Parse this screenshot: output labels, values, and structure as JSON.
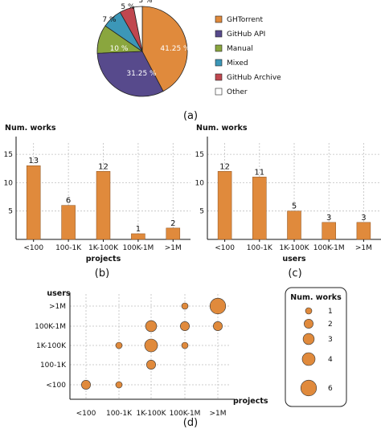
{
  "chart_data": [
    {
      "id": "a",
      "type": "pie",
      "caption": "(a)",
      "labels": [
        "GHTorrent",
        "GitHub API",
        "Manual",
        "Mixed",
        "GitHub Archive",
        "Other"
      ],
      "values": [
        41.25,
        31.25,
        10,
        7,
        5,
        3
      ],
      "value_labels": [
        "41.25 %",
        "31.25 %",
        "10 %",
        "7 %",
        "5 %",
        "3 %"
      ],
      "colors": [
        "#e08a3c",
        "#574a8c",
        "#8aa63e",
        "#3c97b8",
        "#c0474f",
        "#ffffff"
      ],
      "legend_placement": "right"
    },
    {
      "id": "b",
      "type": "bar",
      "caption": "(b)",
      "categories": [
        "<100",
        "100-1K",
        "1K-100K",
        "100K-1M",
        ">1M"
      ],
      "values": [
        13,
        6,
        12,
        1,
        2
      ],
      "xlabel": "projects",
      "ylabel": "Num. works",
      "ylim": [
        0,
        17
      ],
      "yticks": [
        5,
        10,
        15
      ],
      "grid": true,
      "color": "#e08a3c"
    },
    {
      "id": "c",
      "type": "bar",
      "caption": "(c)",
      "categories": [
        "<100",
        "100-1K",
        "1K-100K",
        "100K-1M",
        ">1M"
      ],
      "values": [
        12,
        11,
        5,
        3,
        3
      ],
      "xlabel": "users",
      "ylabel": "Num. works",
      "ylim": [
        0,
        17
      ],
      "yticks": [
        5,
        10,
        15
      ],
      "grid": true,
      "color": "#e08a3c"
    },
    {
      "id": "d",
      "type": "scatter",
      "caption": "(d)",
      "x_categories": [
        "<100",
        "100-1K",
        "1K-100K",
        "100K-1M",
        ">1M"
      ],
      "y_categories": [
        "<100",
        "100-1K",
        "1K-100K",
        "100K-1M",
        ">1M"
      ],
      "xlabel": "projects",
      "ylabel": "users",
      "size_legend_title": "Num. works",
      "size_legend_values": [
        1,
        2,
        3,
        4,
        6
      ],
      "points": [
        {
          "x": "<100",
          "y": "<100",
          "works": 2
        },
        {
          "x": "100-1K",
          "y": "<100",
          "works": 1
        },
        {
          "x": "100-1K",
          "y": "1K-100K",
          "works": 1
        },
        {
          "x": "1K-100K",
          "y": "100-1K",
          "works": 2
        },
        {
          "x": "1K-100K",
          "y": "1K-100K",
          "works": 4
        },
        {
          "x": "1K-100K",
          "y": "100K-1M",
          "works": 3
        },
        {
          "x": "100K-1M",
          "y": "1K-100K",
          "works": 1
        },
        {
          "x": "100K-1M",
          "y": "100K-1M",
          "works": 2
        },
        {
          "x": "100K-1M",
          "y": ">1M",
          "works": 1
        },
        {
          "x": ">1M",
          "y": "100K-1M",
          "works": 2
        },
        {
          "x": ">1M",
          "y": ">1M",
          "works": 6
        }
      ],
      "grid": true,
      "color": "#e08a3c"
    }
  ]
}
